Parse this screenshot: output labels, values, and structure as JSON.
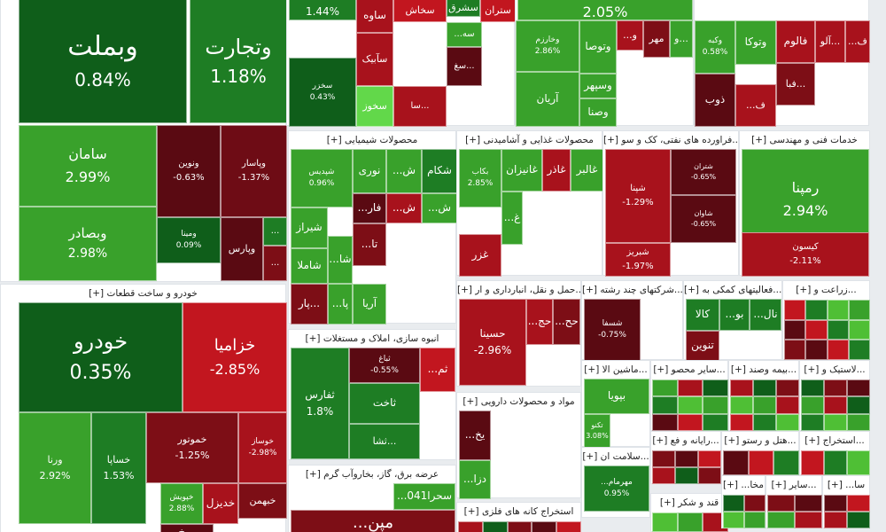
{
  "colors": {
    "strong_green": "#1e7d24",
    "green": "#39a12b",
    "light_green": "#4fbf35",
    "bright_green": "#62d84a",
    "dark_green": "#0f5e1a",
    "dark_red": "#7d0e16",
    "red": "#a8121c",
    "bright_red": "#c2161f",
    "maroon": "#5a0a12"
  },
  "chart_data": {
    "type": "heatmap",
    "sectors": [
      {
        "name": "",
        "tiles": [
          {
            "label": "وبملت",
            "pct": "0.84%",
            "color": "#0f5e1a"
          },
          {
            "label": "وتجارت",
            "pct": "1.18%",
            "color": "#1e7d24"
          },
          {
            "label": "سامان",
            "pct": "2.99%",
            "color": "#39a12b"
          },
          {
            "label": "ونوین",
            "pct": "-0.63%",
            "color": "#5a0a12"
          },
          {
            "label": "وپاسار",
            "pct": "-1.37%",
            "color": "#6e0c15"
          },
          {
            "label": "وبصادر",
            "pct": "2.98%",
            "color": "#39a12b"
          },
          {
            "label": "ومینا",
            "pct": "0.09%",
            "color": "#0f5e1a"
          },
          {
            "label": "وپارس",
            "pct": "",
            "color": "#5a0a12"
          },
          {
            "label": "...",
            "pct": "",
            "color": "#1e7d24"
          },
          {
            "label": "...",
            "pct": "",
            "color": "#7d0e16"
          }
        ]
      },
      {
        "name": "[+] خودرو و ساخت قطعات",
        "tiles": [
          {
            "label": "خودرو",
            "pct": "0.35%",
            "color": "#0f5e1a"
          },
          {
            "label": "خزامیا",
            "pct": "-2.85%",
            "color": "#c2161f"
          },
          {
            "label": "ورنا",
            "pct": "2.92%",
            "color": "#39a12b"
          },
          {
            "label": "خساپا",
            "pct": "1.53%",
            "color": "#1e7d24"
          },
          {
            "label": "خموتور",
            "pct": "-1.25%",
            "color": "#7d0e16"
          },
          {
            "label": "خوساز",
            "pct": "-2.98%",
            "color": "#a8121c"
          },
          {
            "label": "خدیزل",
            "pct": "",
            "color": "#a8121c"
          },
          {
            "label": "خبهمن",
            "pct": "",
            "color": "#7d0e16"
          },
          {
            "label": "خپویش",
            "pct": "2.88%",
            "color": "#39a12b"
          },
          {
            "label": "خ...",
            "pct": "",
            "color": "#5a0a12"
          }
        ]
      },
      {
        "name": "",
        "tiles": [
          {
            "label": "",
            "pct": "1.44%",
            "color": "#1e7d24"
          },
          {
            "label": "ساوه",
            "pct": "",
            "color": "#a8121c"
          },
          {
            "label": "سخاش",
            "pct": "",
            "color": "#c2161f"
          },
          {
            "label": "سشرق",
            "pct": "",
            "color": "#1e7d24"
          },
          {
            "label": "ستران",
            "pct": "",
            "color": "#c2161f"
          },
          {
            "label": "سآبیک",
            "pct": "",
            "color": "#a8121c"
          },
          {
            "label": "سخزر",
            "pct": "0.43%",
            "color": "#0f5e1a"
          },
          {
            "label": "سخوز",
            "pct": "",
            "color": "#62d84a"
          },
          {
            "label": "...سه",
            "pct": "",
            "color": "#39a12b"
          },
          {
            "label": "سغ...",
            "pct": "",
            "color": "#5a0a12"
          },
          {
            "label": "سا...",
            "pct": "",
            "color": "#a8121c"
          }
        ]
      },
      {
        "name": "",
        "tiles": [
          {
            "label": "",
            "pct": "2.05%",
            "color": "#39a12b"
          },
          {
            "label": "وخارزم",
            "pct": "2.86%",
            "color": "#39a12b"
          },
          {
            "label": "وتوصا",
            "pct": "",
            "color": "#39a12b"
          },
          {
            "label": "وسپهر",
            "pct": "",
            "color": "#39a12b"
          },
          {
            "label": "آریان",
            "pct": "",
            "color": "#39a12b"
          },
          {
            "label": "وصنا",
            "pct": "",
            "color": "#39a12b"
          },
          {
            "label": "مهر",
            "pct": "",
            "color": "#7d0e16"
          },
          {
            "label": "...و",
            "pct": "",
            "color": "#a8121c"
          },
          {
            "label": "و...",
            "pct": "",
            "color": "#39a12b"
          }
        ]
      },
      {
        "name": "",
        "tiles": [
          {
            "label": "وتوکا",
            "pct": "",
            "color": "#39a12b"
          },
          {
            "label": "فالوم",
            "pct": "",
            "color": "#a8121c"
          },
          {
            "label": "آلو...",
            "pct": "",
            "color": "#a8121c"
          },
          {
            "label": "...ف",
            "pct": "",
            "color": "#a8121c"
          },
          {
            "label": "وکبه",
            "pct": "0.58%",
            "color": "#39a12b"
          },
          {
            "label": "فبا...",
            "pct": "",
            "color": "#7d0e16"
          },
          {
            "label": "ذوب",
            "pct": "",
            "color": "#5a0a12"
          },
          {
            "label": "...ف",
            "pct": "",
            "color": "#a8121c"
          }
        ]
      },
      {
        "name": "[+] محصولات شیمیایی",
        "tiles": [
          {
            "label": "شپدیس",
            "pct": "0.96%",
            "color": "#39a12b"
          },
          {
            "label": "نوری",
            "pct": "",
            "color": "#39a12b"
          },
          {
            "label": "...ش",
            "pct": "",
            "color": "#39a12b"
          },
          {
            "label": "شکام",
            "pct": "",
            "color": "#1e7d24"
          },
          {
            "label": "شیراز",
            "pct": "",
            "color": "#39a12b"
          },
          {
            "label": "...فار",
            "pct": "",
            "color": "#5a0a12"
          },
          {
            "label": "...ش",
            "pct": "",
            "color": "#a8121c"
          },
          {
            "label": "...ش",
            "pct": "",
            "color": "#39a12b"
          },
          {
            "label": "شاملا",
            "pct": "",
            "color": "#39a12b"
          },
          {
            "label": "...شا",
            "pct": "",
            "color": "#39a12b"
          },
          {
            "label": "...تا",
            "pct": "",
            "color": "#7d0e16"
          },
          {
            "label": "پار...",
            "pct": "",
            "color": "#7d0e16"
          },
          {
            "label": "...پا",
            "pct": "",
            "color": "#39a12b"
          },
          {
            "label": "آریا",
            "pct": "",
            "color": "#39a12b"
          }
        ]
      },
      {
        "name": "[+] محصولات غذایی و آشامیدنی",
        "tiles": [
          {
            "label": "غالبر",
            "pct": "",
            "color": "#39a12b"
          },
          {
            "label": "غاذر",
            "pct": "",
            "color": "#a8121c"
          },
          {
            "label": "غانیزان",
            "pct": "",
            "color": "#39a12b"
          },
          {
            "label": "بکاب",
            "pct": "2.85%",
            "color": "#39a12b"
          },
          {
            "label": "...غ",
            "pct": "",
            "color": "#39a12b"
          },
          {
            "label": "غزر",
            "pct": "",
            "color": "#a8121c"
          }
        ]
      },
      {
        "name": "[+] فراورده های نفتی، کک و سو...",
        "tiles": [
          {
            "label": "شپنا",
            "pct": "-1.29%",
            "color": "#a8121c"
          },
          {
            "label": "شبریز",
            "pct": "-1.97%",
            "color": "#a8121c"
          },
          {
            "label": "شتران",
            "pct": "-0.65%",
            "color": "#5a0a12"
          },
          {
            "label": "شاوان",
            "pct": "-0.65%",
            "color": "#5a0a12"
          }
        ]
      },
      {
        "name": "[+] خدمات فنی و مهندسی",
        "tiles": [
          {
            "label": "رمپنا",
            "pct": "2.94%",
            "color": "#39a12b"
          },
          {
            "label": "کیسون",
            "pct": "-2.11%",
            "color": "#a8121c"
          }
        ]
      },
      {
        "name": "[+] انبوه سازی، املاک و مستغلات",
        "tiles": [
          {
            "label": "ثفارس",
            "pct": "1.8%",
            "color": "#1e7d24"
          },
          {
            "label": "ثباغ",
            "pct": "-0.55%",
            "color": "#5a0a12"
          },
          {
            "label": "...ثم",
            "pct": "",
            "color": "#c2161f"
          },
          {
            "label": "ثاخت",
            "pct": "",
            "color": "#1e7d24"
          },
          {
            "label": "ثشا...",
            "pct": "",
            "color": "#1e7d24"
          }
        ]
      },
      {
        "name": "[+] حمل و نقل، انبارداری و ار...",
        "tiles": [
          {
            "label": "حسینا",
            "pct": "-2.96%",
            "color": "#a8121c"
          },
          {
            "label": "...حج",
            "pct": "",
            "color": "#a8121c"
          },
          {
            "label": "...حح",
            "pct": "",
            "color": "#7d0e16"
          }
        ]
      },
      {
        "name": "[+] شرکتهای چند رشته...",
        "tiles": [
          {
            "label": "شسفا",
            "pct": "-0.75%",
            "color": "#5a0a12"
          }
        ]
      },
      {
        "name": "[+] فعالیتهای کمکی به...",
        "tiles": [
          {
            "label": "کالا",
            "pct": "",
            "color": "#1e7d24"
          },
          {
            "label": "...بو",
            "pct": "",
            "color": "#1e7d24"
          },
          {
            "label": "...نال",
            "pct": "",
            "color": "#1e7d24"
          },
          {
            "label": "تنوین",
            "pct": "",
            "color": "#7d0e16"
          }
        ]
      },
      {
        "name": "[+] زراعت و...",
        "tiles": []
      },
      {
        "name": "[+] مواد و محصولات دارویی",
        "tiles": [
          {
            "label": "...یخ",
            "pct": "",
            "color": "#5a0a12"
          },
          {
            "label": "...دزا",
            "pct": "",
            "color": "#39a12b"
          }
        ]
      },
      {
        "name": "[+] ماشین الا...",
        "tiles": [
          {
            "label": "بپویا",
            "pct": "",
            "color": "#39a12b"
          },
          {
            "label": "تکنو",
            "pct": "3.08%",
            "color": "#39a12b"
          }
        ]
      },
      {
        "name": "[+] سایر محصو...",
        "tiles": []
      },
      {
        "name": "[+] بیمه وصند...",
        "tiles": []
      },
      {
        "name": "[+] لاستیک و...",
        "tiles": []
      },
      {
        "name": "[+] رایانه و فع...",
        "tiles": []
      },
      {
        "name": "[+] هتل و رستو...",
        "tiles": []
      },
      {
        "name": "[+] استخراج...",
        "tiles": []
      },
      {
        "name": "[+] سلامت ان...",
        "tiles": [
          {
            "label": "...مهرمام",
            "pct": "0.95%",
            "color": "#1e7d24"
          }
        ]
      },
      {
        "name": "[+] قند و شکر",
        "tiles": []
      },
      {
        "name": "[+] عرضه برق، گاز، بخاروآب گرم",
        "tiles": [
          {
            "label": "...سحرا041",
            "pct": "",
            "color": "#39a12b"
          },
          {
            "label": "...مپن",
            "pct": "",
            "color": "#7d0e16"
          }
        ]
      },
      {
        "name": "[+] استخراج کانه های فلزی",
        "tiles": []
      },
      {
        "name": "[+] ...مخا",
        "tiles": []
      },
      {
        "name": "[+] سایر...",
        "tiles": []
      },
      {
        "name": "[+] ...سا",
        "tiles": []
      }
    ]
  }
}
